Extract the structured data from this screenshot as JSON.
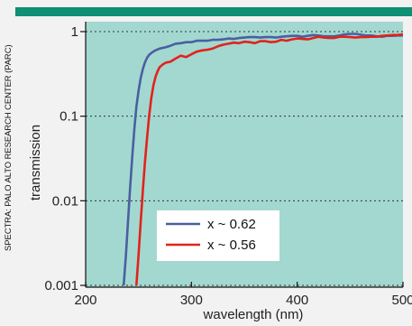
{
  "credit": "SPECTRA: PALO ALTO RESEARCH CENTER (PARC)",
  "colors": {
    "top_bar": "#0f8f73",
    "plot_background": "#a3d8d0",
    "grid": "#333333",
    "series_1": "#4a5fa0",
    "series_2": "#e2221c",
    "legend_background": "#ffffff"
  },
  "chart_data": {
    "type": "line",
    "title": "",
    "xlabel": "wavelength (nm)",
    "ylabel": "transmission",
    "xlim": [
      200,
      500
    ],
    "ylim": [
      0.001,
      1.1
    ],
    "yscale": "log",
    "grid": "horizontal dotted at decades",
    "legend_position": "lower-center",
    "xticks": [
      200,
      300,
      400,
      500
    ],
    "xtick_labels": [
      "200",
      "300",
      "400",
      "500"
    ],
    "yticks": [
      0.001,
      0.01,
      0.1,
      1
    ],
    "ytick_labels": [
      "0.001",
      "0.01",
      "0.1",
      "1"
    ],
    "series": [
      {
        "name": "x ~ 0.62",
        "x": [
          236,
          238,
          240,
          242,
          244,
          246,
          248,
          250,
          252,
          254,
          256,
          258,
          260,
          263,
          266,
          270,
          275,
          280,
          285,
          290,
          295,
          300,
          305,
          310,
          315,
          320,
          325,
          330,
          335,
          340,
          345,
          350,
          355,
          360,
          365,
          370,
          375,
          380,
          385,
          390,
          395,
          400,
          405,
          410,
          415,
          420,
          425,
          430,
          435,
          440,
          445,
          450,
          455,
          460,
          465,
          470,
          475,
          480,
          485,
          490,
          495,
          500
        ],
        "y": [
          0.001,
          0.0022,
          0.0055,
          0.014,
          0.032,
          0.07,
          0.13,
          0.2,
          0.28,
          0.36,
          0.43,
          0.49,
          0.53,
          0.57,
          0.6,
          0.63,
          0.65,
          0.68,
          0.72,
          0.73,
          0.75,
          0.75,
          0.78,
          0.78,
          0.78,
          0.8,
          0.8,
          0.81,
          0.83,
          0.82,
          0.84,
          0.85,
          0.86,
          0.86,
          0.85,
          0.86,
          0.86,
          0.85,
          0.87,
          0.88,
          0.89,
          0.89,
          0.87,
          0.89,
          0.91,
          0.9,
          0.88,
          0.88,
          0.88,
          0.9,
          0.93,
          0.94,
          0.94,
          0.92,
          0.9,
          0.9,
          0.88,
          0.87,
          0.89,
          0.89,
          0.9,
          0.9
        ]
      },
      {
        "name": "x ~ 0.56",
        "x": [
          248,
          250,
          252,
          254,
          256,
          258,
          260,
          262,
          264,
          266,
          268,
          270,
          273,
          276,
          280,
          285,
          290,
          295,
          300,
          305,
          310,
          315,
          320,
          325,
          330,
          335,
          340,
          345,
          350,
          355,
          360,
          365,
          370,
          375,
          380,
          385,
          390,
          395,
          400,
          405,
          410,
          415,
          420,
          425,
          430,
          435,
          440,
          445,
          450,
          455,
          460,
          465,
          470,
          475,
          480,
          485,
          490,
          495,
          500
        ],
        "y": [
          0.001,
          0.0023,
          0.0055,
          0.013,
          0.028,
          0.055,
          0.1,
          0.16,
          0.23,
          0.29,
          0.34,
          0.38,
          0.41,
          0.43,
          0.44,
          0.48,
          0.52,
          0.5,
          0.54,
          0.58,
          0.6,
          0.61,
          0.63,
          0.67,
          0.7,
          0.72,
          0.74,
          0.73,
          0.76,
          0.75,
          0.73,
          0.77,
          0.77,
          0.75,
          0.76,
          0.8,
          0.78,
          0.81,
          0.83,
          0.82,
          0.81,
          0.84,
          0.87,
          0.85,
          0.84,
          0.84,
          0.87,
          0.87,
          0.86,
          0.85,
          0.86,
          0.86,
          0.87,
          0.87,
          0.89,
          0.9,
          0.91,
          0.91,
          0.93
        ]
      }
    ]
  }
}
